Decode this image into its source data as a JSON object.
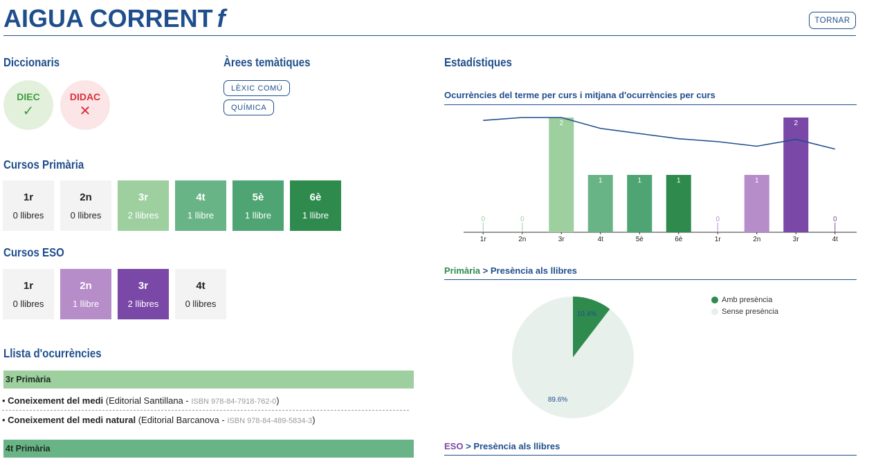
{
  "header": {
    "term": "AIGUA CORRENT",
    "gender": "f",
    "back_label": "TORNAR"
  },
  "dictionaries": {
    "title": "Diccionaris",
    "items": [
      {
        "name": "DIEC",
        "mark": "✓",
        "present": true
      },
      {
        "name": "DIDAC",
        "mark": "✕",
        "present": false
      }
    ]
  },
  "areas": {
    "title": "Àrees temàtiques",
    "items": [
      "LÈXIC COMÚ",
      "QUÍMICA"
    ]
  },
  "primaria": {
    "title": "Cursos Primària",
    "courses": [
      {
        "name": "1r",
        "books": "0 llibres",
        "bg": "#f3f3f3",
        "fg": "#222222"
      },
      {
        "name": "2n",
        "books": "0 llibres",
        "bg": "#f3f3f3",
        "fg": "#222222"
      },
      {
        "name": "3r",
        "books": "2 llibres",
        "bg": "#9dcf9f",
        "fg": "#ffffff"
      },
      {
        "name": "4t",
        "books": "1 llibre",
        "bg": "#69b487",
        "fg": "#ffffff"
      },
      {
        "name": "5è",
        "books": "1 llibre",
        "bg": "#4ea472",
        "fg": "#ffffff"
      },
      {
        "name": "6è",
        "books": "1 llibre",
        "bg": "#2f8a4e",
        "fg": "#ffffff"
      }
    ]
  },
  "eso": {
    "title": "Cursos ESO",
    "courses": [
      {
        "name": "1r",
        "books": "0 llibres",
        "bg": "#f3f3f3",
        "fg": "#222222"
      },
      {
        "name": "2n",
        "books": "1 llibre",
        "bg": "#b68cc9",
        "fg": "#ffffff"
      },
      {
        "name": "3r",
        "books": "2 llibres",
        "bg": "#7a48a6",
        "fg": "#ffffff"
      },
      {
        "name": "4t",
        "books": "0 llibres",
        "bg": "#f3f3f3",
        "fg": "#222222"
      }
    ]
  },
  "occurrences": {
    "title": "Llista d'ocurrències",
    "groups": [
      {
        "heading": "3r Primària",
        "color": "#9dcf9f",
        "books": [
          {
            "subject": "Coneixement del medi",
            "publisher": " (Editorial Santillana - ",
            "isbn": "ISBN 978-84-7918-762-0",
            "close": ")"
          },
          {
            "subject": "Coneixement del medi natural",
            "publisher": " (Editorial Barcanova - ",
            "isbn": "ISBN 978-84-489-5834-3",
            "close": ")"
          }
        ]
      },
      {
        "heading": "4t Primària",
        "color": "#69b487",
        "books": []
      }
    ]
  },
  "stats": {
    "title": "Estadístiques",
    "bar_title": "Ocurrències del terme per curs i mitjana d'ocurrències per curs",
    "pie_primaria": {
      "prefix": "Primària",
      "chevron": ">",
      "label": "Presència als llibres"
    },
    "pie_eso": {
      "prefix": "ESO",
      "chevron": ">",
      "label": "Presència als llibres"
    },
    "legend": {
      "with": "Amb presència",
      "without": "Sense presència",
      "with_color": "#2f8a4e",
      "without_color": "#e8f0ec"
    }
  },
  "chart_data": [
    {
      "type": "bar",
      "title": "Ocurrències del terme per curs i mitjana d'ocurrències per curs",
      "categories": [
        "1r",
        "2n",
        "3r",
        "4t",
        "5è",
        "6è",
        "1r",
        "2n",
        "3r",
        "4t"
      ],
      "values": [
        0,
        0,
        2,
        1,
        1,
        1,
        0,
        1,
        2,
        0
      ],
      "colors": [
        "#9dcf9f",
        "#9dcf9f",
        "#9dcf9f",
        "#69b487",
        "#4ea472",
        "#2f8a4e",
        "#b68cc9",
        "#b68cc9",
        "#7a48a6",
        "#7a48a6"
      ],
      "average_line": [
        1.95,
        2.0,
        2.0,
        1.81,
        1.72,
        1.63,
        1.58,
        1.5,
        1.62,
        1.45
      ],
      "ylim": [
        0,
        2.1
      ],
      "line_color": "#1f4e8c"
    },
    {
      "type": "pie",
      "title": "Primària > Presència als llibres",
      "labels": [
        "Amb presència",
        "Sense presència"
      ],
      "values": [
        10.4,
        89.6
      ],
      "value_labels": [
        "10.4%",
        "89.6%"
      ],
      "colors": [
        "#2f8a4e",
        "#e8f0ec"
      ],
      "legend": "top-right"
    }
  ]
}
